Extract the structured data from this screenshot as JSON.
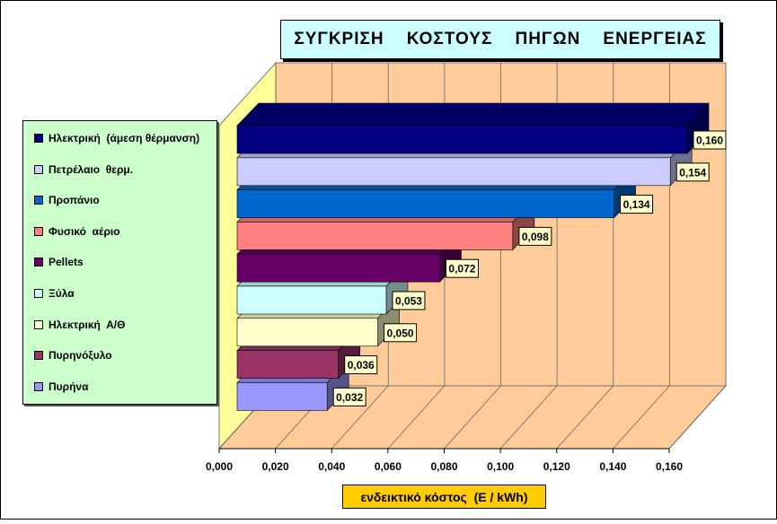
{
  "chart_data": {
    "type": "bar",
    "orientation": "horizontal",
    "style": "3d",
    "title": "ΣΥΓΚΡΙΣΗ    ΚΟΣΤΟΥΣ    ΠΗΓΩΝ    ΕΝΕΡΓΕΙΑΣ",
    "xlabel": "ενδεικτικό κόστος  (E / kWh)",
    "xlim": [
      0,
      0.16
    ],
    "xticks": [
      "0,000",
      "0,020",
      "0,040",
      "0,060",
      "0,080",
      "0,100",
      "0,120",
      "0,140",
      "0,160"
    ],
    "grid": true,
    "legend_position": "left",
    "series": [
      {
        "name": "Ηλεκτρική  (άμεση θέρμανση)",
        "value": 0.16,
        "label": "0,160",
        "color": "#000080"
      },
      {
        "name": "Πετρέλαιο  θερμ.",
        "value": 0.154,
        "label": "0,154",
        "color": "#ccccff"
      },
      {
        "name": "Προπάνιο",
        "value": 0.134,
        "label": "0,134",
        "color": "#0066cc"
      },
      {
        "name": "Φυσικό  αέριο",
        "value": 0.098,
        "label": "0,098",
        "color": "#ff8080"
      },
      {
        "name": "Pellets",
        "value": 0.072,
        "label": "0,072",
        "color": "#660066"
      },
      {
        "name": "Ξύλα",
        "value": 0.053,
        "label": "0,053",
        "color": "#ccffff"
      },
      {
        "name": "Ηλεκτρική  Α/Θ",
        "value": 0.05,
        "label": "0,050",
        "color": "#ffffcc"
      },
      {
        "name": "Πυρηνόξυλο",
        "value": 0.036,
        "label": "0,036",
        "color": "#993366"
      },
      {
        "name": "Πυρήνα",
        "value": 0.032,
        "label": "0,032",
        "color": "#9999ff"
      }
    ],
    "colors": {
      "back_wall": "#ffcc99",
      "side_wall": "#ffff99",
      "floor": "#ffcc99",
      "label_box": "#ffffcc"
    }
  }
}
